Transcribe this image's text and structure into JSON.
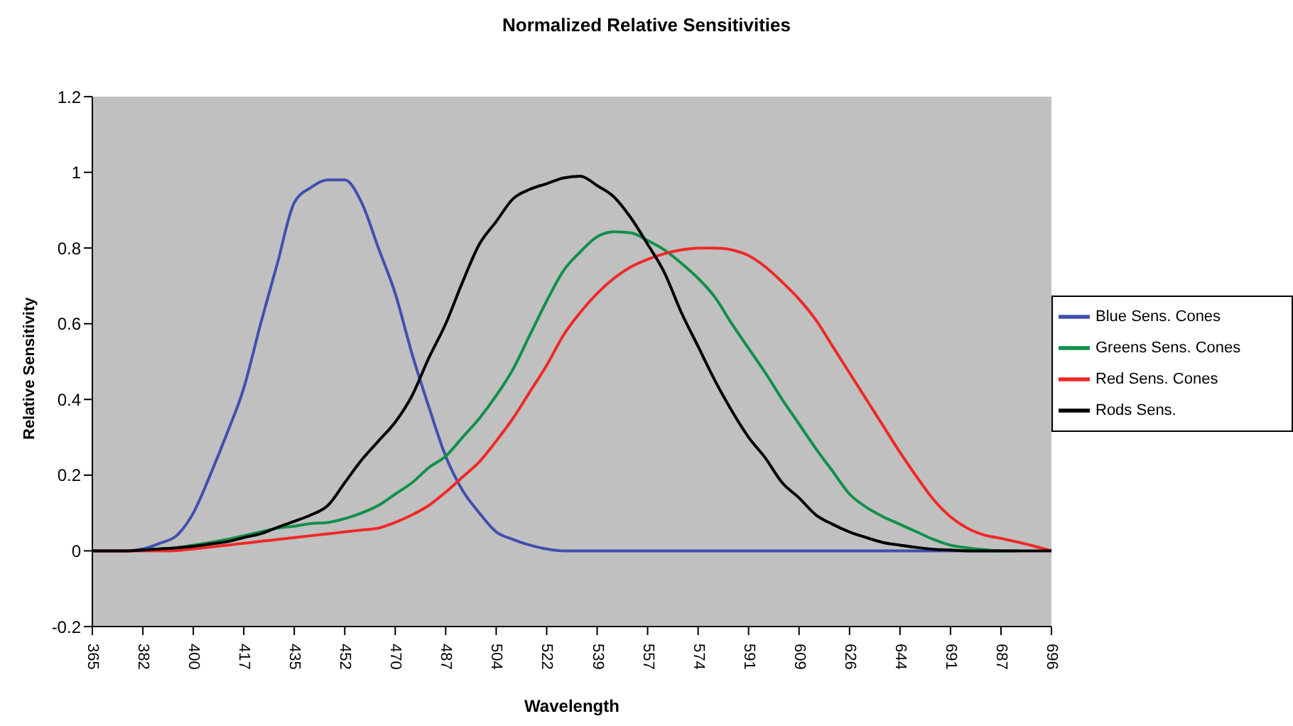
{
  "chart_data": {
    "type": "line",
    "title": "Normalized Relative Sensitivities",
    "xlabel": "Wavelength",
    "ylabel": "Relative Sensitivity",
    "categories": [
      "365",
      null,
      null,
      "382",
      null,
      null,
      "400",
      null,
      null,
      "417",
      null,
      null,
      "435",
      null,
      null,
      "452",
      null,
      null,
      "470",
      null,
      null,
      "487",
      null,
      null,
      "504",
      null,
      null,
      "522",
      null,
      null,
      "539",
      null,
      null,
      "557",
      null,
      null,
      "574",
      null,
      null,
      "591",
      null,
      null,
      "609",
      null,
      null,
      "626",
      null,
      null,
      "644",
      null,
      null,
      "691",
      null,
      null,
      "687",
      null,
      null,
      "696"
    ],
    "series": [
      {
        "name": "Blue Sens. Cones",
        "color": "#4050b0",
        "values": [
          0,
          0,
          0,
          0.005,
          0.02,
          0.04,
          0.1,
          0.2,
          0.31,
          0.43,
          0.6,
          0.76,
          0.92,
          0.96,
          0.98,
          0.98,
          0.92,
          0.8,
          0.68,
          0.52,
          0.38,
          0.25,
          0.16,
          0.1,
          0.05,
          0.03,
          0.015,
          0.005,
          0,
          0,
          0,
          0,
          0,
          0,
          0,
          0,
          0,
          0,
          0,
          0,
          0,
          0,
          0,
          0,
          0,
          0,
          0,
          0,
          0,
          0,
          0,
          0,
          0,
          0,
          0,
          null,
          null,
          null
        ]
      },
      {
        "name": "Greens Sens. Cones",
        "color": "#10904a",
        "values": [
          null,
          null,
          null,
          0.002,
          0.005,
          0.008,
          0.015,
          0.022,
          0.03,
          0.04,
          0.05,
          0.06,
          0.065,
          0.072,
          0.075,
          0.085,
          0.1,
          0.12,
          0.15,
          0.18,
          0.22,
          0.25,
          0.3,
          0.35,
          0.41,
          0.48,
          0.57,
          0.66,
          0.74,
          0.79,
          0.83,
          0.843,
          0.84,
          0.82,
          0.795,
          0.76,
          0.72,
          0.67,
          0.6,
          0.535,
          0.47,
          0.4,
          0.335,
          0.27,
          0.21,
          0.15,
          0.115,
          0.09,
          0.07,
          0.05,
          0.03,
          0.015,
          0.008,
          0.003,
          0,
          0,
          null,
          null
        ]
      },
      {
        "name": "Red Sens. Cones",
        "color": "#f02828",
        "values": [
          0,
          0,
          0,
          0,
          0,
          0.001,
          0.005,
          0.01,
          0.015,
          0.02,
          0.025,
          0.03,
          0.035,
          0.04,
          0.045,
          0.05,
          0.055,
          0.06,
          0.075,
          0.095,
          0.12,
          0.155,
          0.195,
          0.235,
          0.29,
          0.35,
          0.42,
          0.49,
          0.57,
          0.63,
          0.68,
          0.72,
          0.75,
          0.77,
          0.785,
          0.795,
          0.8,
          0.8,
          0.795,
          0.78,
          0.75,
          0.71,
          0.665,
          0.61,
          0.54,
          0.47,
          0.4,
          0.33,
          0.26,
          0.195,
          0.135,
          0.09,
          0.06,
          0.042,
          0.033,
          0.023,
          0.012,
          0
        ]
      },
      {
        "name": "Rods Sens.",
        "color": "#000000",
        "values": [
          0,
          0,
          0,
          0.002,
          0.005,
          0.008,
          0.012,
          0.018,
          0.024,
          0.035,
          0.045,
          0.062,
          0.078,
          0.095,
          0.12,
          0.18,
          0.24,
          0.29,
          0.34,
          0.41,
          0.51,
          0.6,
          0.71,
          0.81,
          0.87,
          0.93,
          0.955,
          0.97,
          0.985,
          0.99,
          0.965,
          0.935,
          0.88,
          0.81,
          0.735,
          0.63,
          0.54,
          0.45,
          0.37,
          0.3,
          0.245,
          0.18,
          0.14,
          0.095,
          0.07,
          0.05,
          0.035,
          0.022,
          0.015,
          0.009,
          0.004,
          0.002,
          0,
          0,
          0,
          0,
          0,
          0
        ]
      }
    ],
    "ylim": [
      -0.2,
      1.2
    ],
    "yticks": [
      -0.2,
      0,
      0.2,
      0.4,
      0.6,
      0.8,
      1,
      1.2
    ],
    "grid": false,
    "legend": "right",
    "marker": "none",
    "line_style": "solid"
  }
}
